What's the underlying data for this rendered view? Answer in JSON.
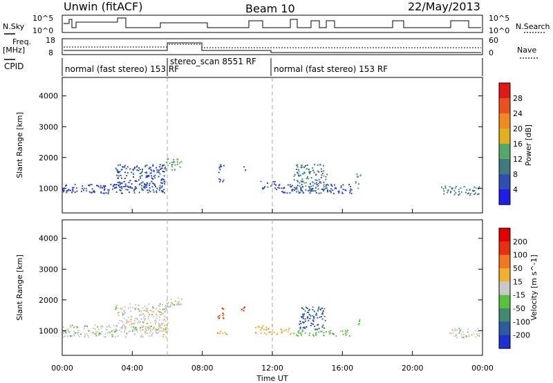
{
  "header": {
    "radar": "Unwin (fitACF)",
    "beam": "Beam 10",
    "date": "22/May/2013"
  },
  "top_panels": {
    "nsky_label": "N.Sky",
    "nsearch_label": "N.Search",
    "nsky_ticks": [
      "10^5",
      "10^0"
    ],
    "nsearch_ticks": [
      "10^5",
      "10^0"
    ],
    "freq_label_1": "Freq.",
    "freq_label_2": "[MHz]",
    "freq_ticks": [
      "18",
      "8"
    ],
    "nave_label": "Nave",
    "nave_ticks": [
      "60",
      "0"
    ],
    "cpid_label": "CPID",
    "cpid_segments": [
      {
        "start_h": 0.0,
        "end_h": 6.0,
        "text": "normal (fast stereo) 153 RF"
      },
      {
        "start_h": 6.0,
        "end_h": 12.0,
        "text": "stereo_scan 8551 RF"
      },
      {
        "start_h": 12.0,
        "end_h": 24.0,
        "text": "normal (fast stereo) 153 RF"
      }
    ]
  },
  "time_axis": {
    "label": "Time UT",
    "ticks": [
      "00:00",
      "04:00",
      "08:00",
      "12:00",
      "16:00",
      "20:00",
      "00:00"
    ]
  },
  "chart_data": [
    {
      "type": "heatmap",
      "panel": "power",
      "ylabel": "Slant Range [km]",
      "xlabel": "",
      "xlim_hours": [
        0,
        24
      ],
      "ylim": [
        200,
        4600
      ],
      "yticks": [
        1000,
        2000,
        3000,
        4000
      ],
      "markers_hours": [
        6.0,
        12.0
      ],
      "colorbar": {
        "label": "Power [dB]",
        "ticks": [
          "4",
          "8",
          "12",
          "16",
          "20",
          "24",
          "28"
        ],
        "colors": [
          "#1e1ee6",
          "#2f4fb0",
          "#3f7a80",
          "#55a86a",
          "#e0b020",
          "#f08a20",
          "#e85020",
          "#e01818"
        ]
      },
      "clusters": [
        {
          "t0": 0.0,
          "t1": 5.9,
          "r0": 850,
          "r1": 1150,
          "level": 1
        },
        {
          "t0": 3.0,
          "t1": 5.9,
          "r0": 1000,
          "r1": 1800,
          "level": 1
        },
        {
          "t0": 5.8,
          "t1": 6.8,
          "r0": 1600,
          "r1": 2000,
          "level": 3
        },
        {
          "t0": 8.9,
          "t1": 9.2,
          "r0": 1200,
          "r1": 1800,
          "level": 1
        },
        {
          "t0": 10.3,
          "t1": 10.5,
          "r0": 1600,
          "r1": 1800,
          "level": 1
        },
        {
          "t0": 11.3,
          "t1": 12.2,
          "r0": 1000,
          "r1": 1250,
          "level": 1
        },
        {
          "t0": 12.2,
          "t1": 16.5,
          "r0": 850,
          "r1": 1150,
          "level": 1
        },
        {
          "t0": 13.2,
          "t1": 15.1,
          "r0": 900,
          "r1": 1800,
          "level": 2
        },
        {
          "t0": 16.7,
          "t1": 17.0,
          "r0": 1000,
          "r1": 1500,
          "level": 3
        },
        {
          "t0": 21.6,
          "t1": 23.8,
          "r0": 800,
          "r1": 1100,
          "level": 2
        }
      ]
    },
    {
      "type": "heatmap",
      "panel": "velocity",
      "ylabel": "Slant Range [km]",
      "xlabel": "Time UT",
      "xlim_hours": [
        0,
        24
      ],
      "ylim": [
        200,
        4600
      ],
      "yticks": [
        1000,
        2000,
        3000,
        4000
      ],
      "markers_hours": [
        6.0,
        12.0
      ],
      "colorbar": {
        "label": "Velocity [m s^-1]",
        "ticks": [
          "200",
          "100",
          "50",
          "15",
          "-15",
          "-50",
          "-100",
          "-200"
        ],
        "colors": [
          "#1e2fd0",
          "#2f5aa0",
          "#3f8a70",
          "#5ac040",
          "#c8c8c8",
          "#f0b030",
          "#f07820",
          "#e83010",
          "#e00000"
        ]
      },
      "clusters": [
        {
          "t0": 0.0,
          "t1": 5.9,
          "r0": 800,
          "r1": 1200,
          "level": 4
        },
        {
          "t0": 3.0,
          "t1": 6.0,
          "r0": 1000,
          "r1": 1900,
          "level": 4
        },
        {
          "t0": 5.8,
          "t1": 6.8,
          "r0": 1700,
          "r1": 2100,
          "level": 4
        },
        {
          "t0": 8.8,
          "t1": 9.2,
          "r0": 1400,
          "r1": 1800,
          "level": 7
        },
        {
          "t0": 10.2,
          "t1": 10.5,
          "r0": 1600,
          "r1": 1800,
          "level": 7
        },
        {
          "t0": 8.8,
          "t1": 9.5,
          "r0": 850,
          "r1": 1000,
          "level": 5
        },
        {
          "t0": 11.0,
          "t1": 12.0,
          "r0": 900,
          "r1": 1200,
          "level": 5
        },
        {
          "t0": 12.0,
          "t1": 13.0,
          "r0": 900,
          "r1": 1100,
          "level": 5
        },
        {
          "t0": 13.0,
          "t1": 16.5,
          "r0": 850,
          "r1": 1050,
          "level": 3
        },
        {
          "t0": 13.5,
          "t1": 15.0,
          "r0": 1050,
          "r1": 1800,
          "level": 1
        },
        {
          "t0": 16.8,
          "t1": 17.0,
          "r0": 1100,
          "r1": 1400,
          "level": 3
        },
        {
          "t0": 22.0,
          "t1": 23.8,
          "r0": 800,
          "r1": 1100,
          "level": 4
        }
      ]
    }
  ]
}
